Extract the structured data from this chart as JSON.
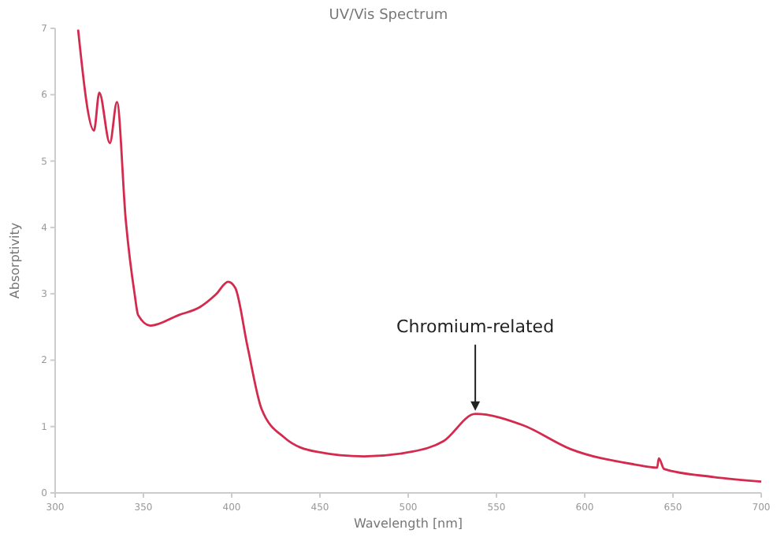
{
  "chart_data": {
    "type": "line",
    "title": "UV/Vis Spectrum",
    "xlabel": "Wavelength [nm]",
    "ylabel": "Absorptivity",
    "xlim": [
      300,
      700
    ],
    "xticks": [
      300,
      350,
      400,
      450,
      500,
      550,
      600,
      650,
      700
    ],
    "ylim": [
      0,
      7
    ],
    "yticks": [
      0,
      1,
      2,
      3,
      4,
      5,
      6,
      7
    ],
    "grid": false,
    "series": [
      {
        "color": "#d42a4e",
        "x": [
          313,
          322,
          325,
          331,
          335,
          340,
          345,
          347,
          354,
          370,
          382,
          391,
          398,
          402,
          409,
          417,
          430,
          448,
          475,
          502,
          520,
          538,
          565,
          592,
          628,
          641,
          642,
          645,
          673,
          700
        ],
        "values": [
          6.98,
          5.46,
          6.03,
          5.27,
          5.89,
          4.11,
          3.0,
          2.68,
          2.52,
          2.68,
          2.8,
          2.99,
          3.18,
          3.09,
          2.2,
          1.26,
          0.83,
          0.62,
          0.55,
          0.62,
          0.78,
          1.19,
          1.02,
          0.66,
          0.43,
          0.38,
          0.52,
          0.36,
          0.24,
          0.17
        ]
      }
    ],
    "annotations": [
      {
        "text": "Chromium-related",
        "x": 538,
        "y": 1.19
      }
    ]
  }
}
